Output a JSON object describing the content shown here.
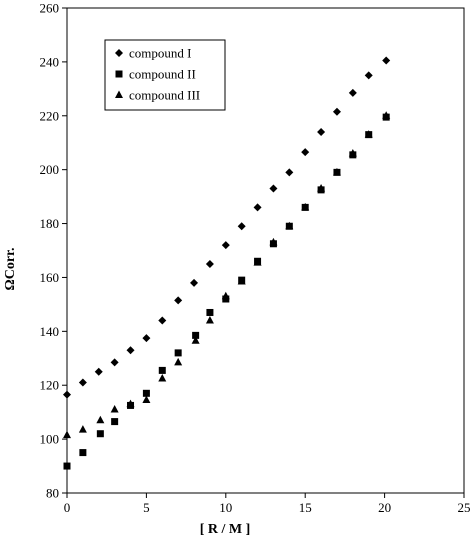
{
  "chart_data": {
    "type": "scatter",
    "xlabel": "[ R / M ]",
    "ylabel": "ΩCorr.",
    "xlim": [
      0,
      25
    ],
    "ylim": [
      80,
      260
    ],
    "xticks": [
      0,
      5,
      10,
      15,
      20,
      25
    ],
    "yticks": [
      80,
      100,
      120,
      140,
      160,
      180,
      200,
      220,
      240,
      260
    ],
    "grid": false,
    "legend_position": "top-left",
    "series": [
      {
        "name": "compound I",
        "marker": "diamond",
        "x": [
          0,
          1,
          2,
          3,
          4,
          5,
          6,
          7,
          8,
          9,
          10,
          11,
          12,
          13,
          14,
          15,
          16,
          17,
          18,
          19,
          20.1
        ],
        "y": [
          116.5,
          121,
          125,
          128.5,
          133,
          137.5,
          144,
          151.5,
          158,
          165,
          172,
          179,
          186,
          193,
          199,
          206.5,
          214,
          221.5,
          228.5,
          235,
          240.5
        ]
      },
      {
        "name": "compound II",
        "marker": "square",
        "x": [
          0,
          1,
          2.1,
          3,
          4,
          5,
          6,
          7,
          8.1,
          9,
          10,
          11,
          12,
          13,
          14,
          15,
          16,
          17,
          18,
          19,
          20.1
        ],
        "y": [
          90,
          95,
          102,
          106.5,
          112.5,
          117,
          125.5,
          132,
          138.5,
          147,
          152,
          159,
          166,
          172.5,
          179,
          186,
          192.5,
          199,
          205.5,
          213,
          219.5
        ]
      },
      {
        "name": "compound III",
        "marker": "triangle",
        "x": [
          0,
          1,
          2.1,
          3,
          4,
          5,
          6,
          7,
          8.1,
          9,
          10,
          11,
          12,
          13,
          14,
          15,
          16,
          17,
          18,
          19,
          20.1
        ],
        "y": [
          101.5,
          103.5,
          107,
          111,
          113,
          114.5,
          122.5,
          128.5,
          136.5,
          144,
          153,
          158.5,
          165.5,
          173,
          179,
          186,
          193,
          199,
          206,
          213,
          220
        ]
      }
    ]
  }
}
